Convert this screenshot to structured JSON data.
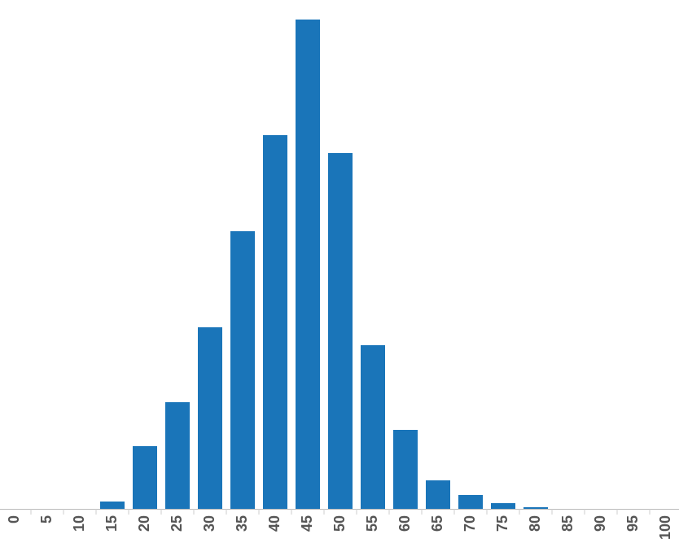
{
  "chart_data": {
    "type": "bar",
    "categories": [
      "0",
      "5",
      "10",
      "15",
      "20",
      "25",
      "30",
      "35",
      "40",
      "45",
      "50",
      "55",
      "60",
      "65",
      "70",
      "75",
      "80",
      "85",
      "90",
      "95",
      "100"
    ],
    "values": [
      0,
      0,
      0,
      9,
      77,
      131,
      223,
      341,
      459,
      601,
      437,
      201,
      97,
      35,
      17,
      7,
      2,
      0,
      0,
      0,
      0
    ],
    "color": "#1a75b9",
    "ylim": [
      0,
      601
    ]
  }
}
